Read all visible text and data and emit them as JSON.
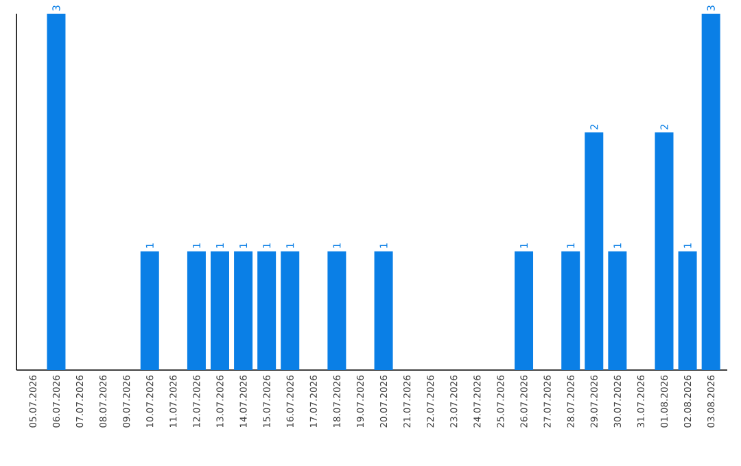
{
  "chart_data": {
    "type": "bar",
    "categories": [
      "05.07.2026",
      "06.07.2026",
      "07.07.2026",
      "08.07.2026",
      "09.07.2026",
      "10.07.2026",
      "11.07.2026",
      "12.07.2026",
      "13.07.2026",
      "14.07.2026",
      "15.07.2026",
      "16.07.2026",
      "17.07.2026",
      "18.07.2026",
      "19.07.2026",
      "20.07.2026",
      "21.07.2026",
      "22.07.2026",
      "23.07.2026",
      "24.07.2026",
      "25.07.2026",
      "26.07.2026",
      "27.07.2026",
      "28.07.2026",
      "29.07.2026",
      "30.07.2026",
      "31.07.2026",
      "01.08.2026",
      "02.08.2026",
      "03.08.2026"
    ],
    "values": [
      null,
      3,
      null,
      null,
      null,
      1,
      null,
      1,
      1,
      1,
      1,
      1,
      null,
      1,
      null,
      1,
      null,
      null,
      null,
      null,
      null,
      1,
      null,
      1,
      2,
      1,
      null,
      2,
      1,
      3
    ],
    "color": "#0a7fe6",
    "data_labels": true
  }
}
